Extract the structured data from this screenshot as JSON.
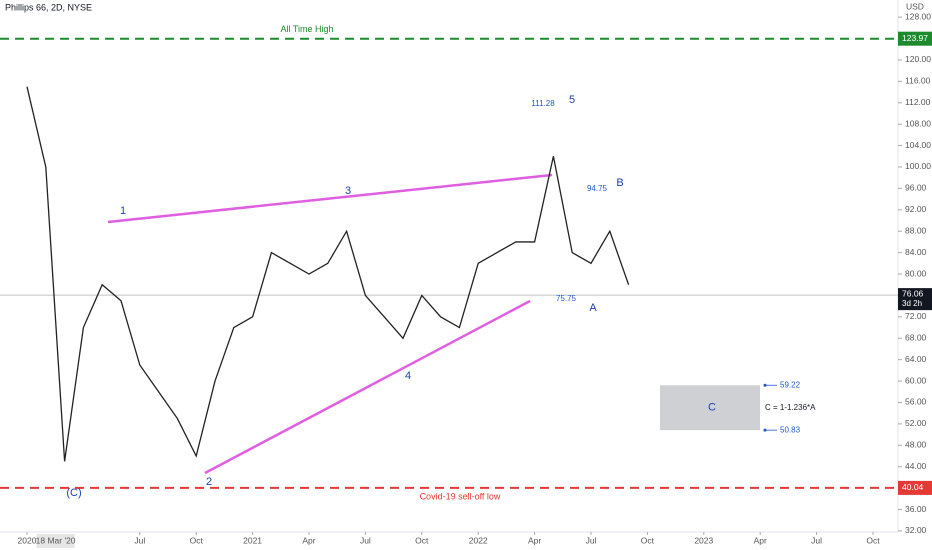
{
  "chart_data": {
    "type": "line",
    "title": "Phillips 66, 2D, NYSE",
    "currency": "USD",
    "x": [
      "2020-01",
      "2020-02",
      "2020-03",
      "2020-04",
      "2020-05",
      "2020-06",
      "2020-07",
      "2020-08",
      "2020-09",
      "2020-10",
      "2020-11",
      "2020-12",
      "2021-01",
      "2021-02",
      "2021-03",
      "2021-04",
      "2021-05",
      "2021-06",
      "2021-07",
      "2021-08",
      "2021-09",
      "2021-10",
      "2021-11",
      "2021-12",
      "2022-01",
      "2022-02",
      "2022-03",
      "2022-04",
      "2022-05",
      "2022-06",
      "2022-07",
      "2022-08",
      "2022-09"
    ],
    "series": [
      {
        "name": "Phillips 66",
        "color": "#222222",
        "values": [
          115,
          100,
          45,
          70,
          78,
          75,
          63,
          58,
          53,
          46,
          60,
          70,
          72,
          84,
          82,
          80,
          82,
          88,
          76,
          72,
          68,
          76,
          72,
          70,
          82,
          84,
          86,
          86,
          102,
          84,
          82,
          88,
          78
        ]
      }
    ],
    "xticks": [
      {
        "value": "2020-01",
        "label": "2020"
      },
      {
        "value": "2020-07",
        "label": "Jul"
      },
      {
        "value": "2020-10",
        "label": "Oct"
      },
      {
        "value": "2021-01",
        "label": "2021"
      },
      {
        "value": "2021-04",
        "label": "Apr"
      },
      {
        "value": "2021-07",
        "label": "Jul"
      },
      {
        "value": "2021-10",
        "label": "Oct"
      },
      {
        "value": "2022-01",
        "label": "2022"
      },
      {
        "value": "2022-04",
        "label": "Apr"
      },
      {
        "value": "2022-07",
        "label": "Jul"
      },
      {
        "value": "2022-10",
        "label": "Oct"
      },
      {
        "value": "2023-01",
        "label": "2023"
      },
      {
        "value": "2023-04",
        "label": "Apr"
      },
      {
        "value": "2023-07",
        "label": "Jul"
      },
      {
        "value": "2023-10",
        "label": "Oct"
      }
    ],
    "x_highlight": "18 Mar '20",
    "ylim": [
      31.8,
      131.2
    ],
    "yticks": [
      {
        "value": 128,
        "label": "128.00"
      },
      {
        "value": 120,
        "label": "120.00"
      },
      {
        "value": 116,
        "label": "116.00"
      },
      {
        "value": 112,
        "label": "112.00"
      },
      {
        "value": 108,
        "label": "108.00"
      },
      {
        "value": 104,
        "label": "104.00"
      },
      {
        "value": 100,
        "label": "100.00"
      },
      {
        "value": 96,
        "label": "96.00"
      },
      {
        "value": 92,
        "label": "92.00"
      },
      {
        "value": 88,
        "label": "88.00"
      },
      {
        "value": 84,
        "label": "84.00"
      },
      {
        "value": 80,
        "label": "80.00"
      },
      {
        "value": 72,
        "label": "72.00"
      },
      {
        "value": 68,
        "label": "68.00"
      },
      {
        "value": 64,
        "label": "64.00"
      },
      {
        "value": 60,
        "label": "60.00"
      },
      {
        "value": 56,
        "label": "56.00"
      },
      {
        "value": 52,
        "label": "52.00"
      },
      {
        "value": 48,
        "label": "48.00"
      },
      {
        "value": 44,
        "label": "44.00"
      },
      {
        "value": 36,
        "label": "36.00"
      },
      {
        "value": 32,
        "label": "32.00"
      }
    ],
    "levels": [
      {
        "label": "All Time High",
        "value": 123.97,
        "color": "#1e8a2e"
      },
      {
        "label": "Covid-19 sell-off low",
        "value": 40.04,
        "color": "#e53935"
      }
    ],
    "current_price": 76.06,
    "countdown": "3d 2h",
    "waves": [
      "1",
      "2",
      "3",
      "4",
      "5",
      "(C)",
      "A",
      "B"
    ],
    "price_notes": [
      "111.28",
      "94.75",
      "75.75"
    ],
    "target": {
      "label": "C",
      "formula": "C = 1-1.236*A",
      "top": 59.22,
      "bottom": 50.83
    }
  }
}
